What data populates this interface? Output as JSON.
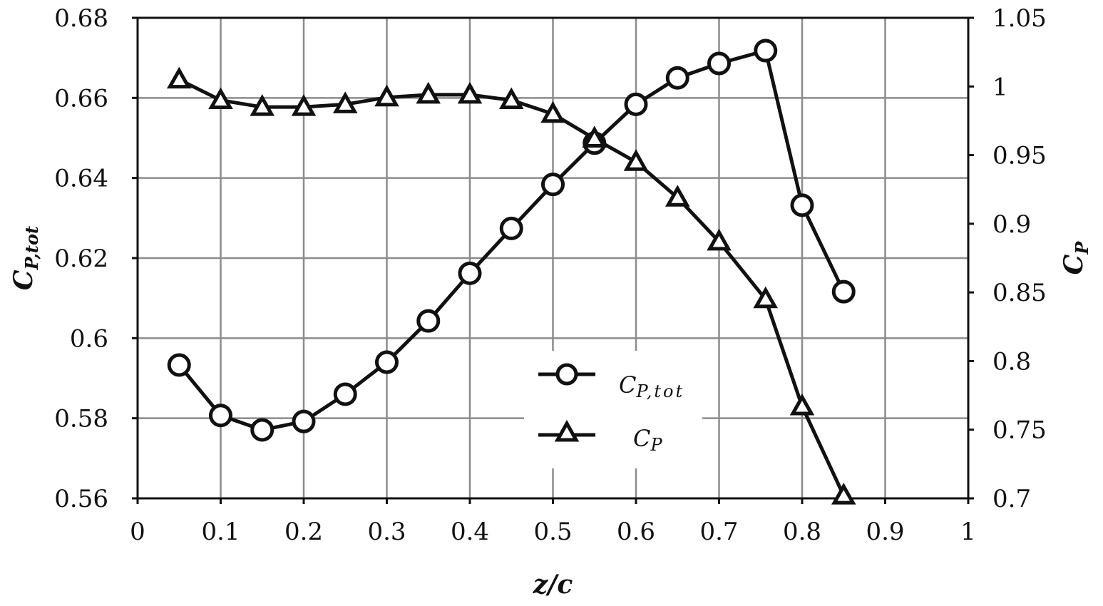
{
  "chart_data": {
    "type": "line",
    "xlabel": "z/c",
    "ylabel_left": "C",
    "ylabel_left_sub": "P,tot",
    "ylabel_right": "C",
    "ylabel_right_sub": "P",
    "xlim": [
      0,
      1
    ],
    "ylim_left": [
      0.56,
      0.68
    ],
    "ylim_right": [
      0.7,
      1.05
    ],
    "x_ticks": [
      "0",
      "0.1",
      "0.2",
      "0.3",
      "0.4",
      "0.5",
      "0.6",
      "0.7",
      "0.8",
      "0.9",
      "1"
    ],
    "y_left_ticks": [
      "0.56",
      "0.58",
      "0.6",
      "0.62",
      "0.64",
      "0.66",
      "0.68"
    ],
    "y_right_ticks": [
      "0.7",
      "0.75",
      "0.8",
      "0.85",
      "0.9",
      "0.95",
      "1",
      "1.05"
    ],
    "grid": true,
    "legend_position": "center",
    "series": [
      {
        "name": "C",
        "name_sub": "P,tot",
        "axis": "left",
        "marker": "circle",
        "x": [
          0.05,
          0.1,
          0.15,
          0.2,
          0.25,
          0.3,
          0.35,
          0.4,
          0.45,
          0.5,
          0.55,
          0.6,
          0.65,
          0.7,
          0.756,
          0.8,
          0.85
        ],
        "values": [
          0.5933,
          0.5807,
          0.5771,
          0.5792,
          0.586,
          0.594,
          0.6043,
          0.6162,
          0.6274,
          0.6384,
          0.6487,
          0.6584,
          0.665,
          0.6686,
          0.6718,
          0.6332,
          0.6116
        ]
      },
      {
        "name": "C",
        "name_sub": "P",
        "axis": "right",
        "marker": "triangle",
        "x": [
          0.05,
          0.1,
          0.15,
          0.2,
          0.25,
          0.3,
          0.35,
          0.4,
          0.45,
          0.5,
          0.55,
          0.6,
          0.65,
          0.7,
          0.756,
          0.8,
          0.85
        ],
        "values": [
          1.005,
          0.99,
          0.985,
          0.985,
          0.987,
          0.992,
          0.994,
          0.994,
          0.99,
          0.98,
          0.962,
          0.945,
          0.919,
          0.887,
          0.845,
          0.767,
          0.702
        ]
      }
    ]
  }
}
